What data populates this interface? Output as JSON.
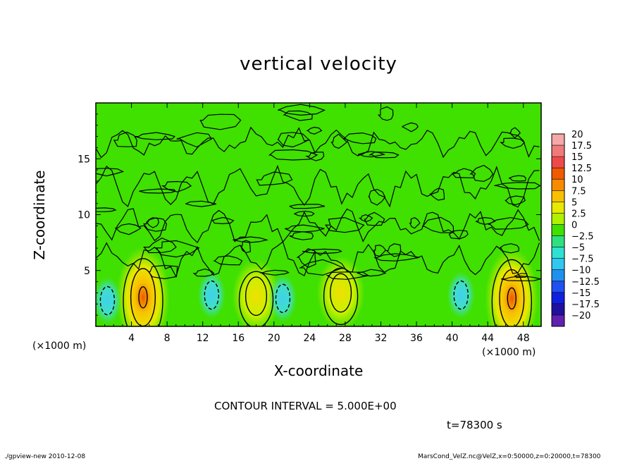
{
  "chart_data": {
    "type": "heatmap",
    "title": "vertical velocity",
    "xlabel": "X-coordinate",
    "ylabel": "Z-coordinate",
    "x_scale_note": "(×1000 m)",
    "y_scale_note": "(×1000 m)",
    "xlim": [
      0,
      50
    ],
    "ylim": [
      0,
      20
    ],
    "x_ticks": [
      4,
      8,
      12,
      16,
      20,
      24,
      28,
      32,
      36,
      40,
      44,
      48
    ],
    "x_tick_labels": [
      "4",
      "8",
      "12",
      "16",
      "20",
      "24",
      "28",
      "32",
      "36",
      "40",
      "44",
      "48"
    ],
    "y_ticks": [
      5,
      10,
      15
    ],
    "y_tick_labels": [
      "5",
      "10",
      "15"
    ],
    "colorbar_levels": [
      20,
      17.5,
      15,
      12.5,
      10,
      7.5,
      5,
      2.5,
      0,
      -2.5,
      -5,
      -7.5,
      -10,
      -12.5,
      -15,
      -17.5,
      -20
    ],
    "colorbar_labels": [
      "20",
      "17.5",
      "15",
      "12.5",
      "10",
      "7.5",
      "5",
      "2.5",
      "0",
      "−2.5",
      "−5",
      "−7.5",
      "−10",
      "−12.5",
      "−15",
      "−17.5",
      "−20"
    ],
    "colorbar_colors": [
      "#f4a8a8",
      "#f07a7a",
      "#ee4a4a",
      "#f05a00",
      "#f88a00",
      "#f8c000",
      "#e8e800",
      "#b0f000",
      "#40e000",
      "#30e080",
      "#30e0d0",
      "#30c8f0",
      "#2090f0",
      "#2050f0",
      "#1020e0",
      "#2010a0",
      "#6020b0"
    ],
    "features": [
      {
        "kind": "updraft",
        "x": 5.3,
        "z": 2.6,
        "peak": 12.5
      },
      {
        "kind": "updraft",
        "x": 18.0,
        "z": 2.7,
        "peak": 7.5
      },
      {
        "kind": "updraft",
        "x": 27.5,
        "z": 3.0,
        "peak": 7.5
      },
      {
        "kind": "updraft",
        "x": 46.7,
        "z": 2.5,
        "peak": 12.5
      },
      {
        "kind": "downdraft",
        "x": 1.3,
        "z": 2.3,
        "peak": -7.5
      },
      {
        "kind": "downdraft",
        "x": 13.0,
        "z": 2.8,
        "peak": -5
      },
      {
        "kind": "downdraft",
        "x": 21.0,
        "z": 2.5,
        "peak": -5
      },
      {
        "kind": "downdraft",
        "x": 41.0,
        "z": 2.8,
        "peak": -5
      }
    ]
  },
  "annotations": {
    "contour_interval": "CONTOUR INTERVAL = 5.000E+00",
    "time": "t=78300 s",
    "footer_left": "./gpview-new  2010-12-08",
    "footer_right": "MarsCond_VelZ.nc@VelZ,x=0:50000,z=0:20000,t=78300"
  }
}
